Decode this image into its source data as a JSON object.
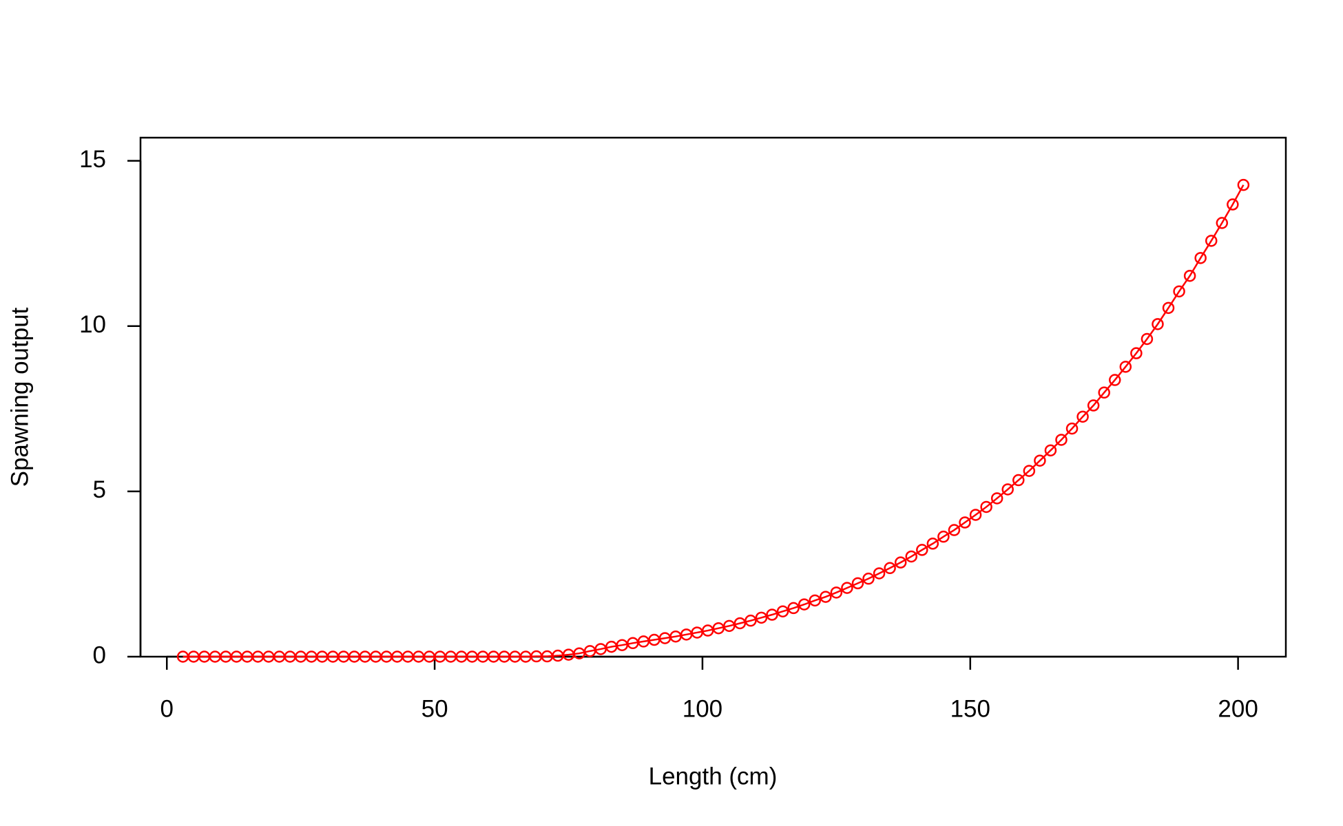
{
  "chart_data": {
    "type": "line",
    "xlabel": "Length (cm)",
    "ylabel": "Spawning output",
    "x": [
      3,
      5,
      7,
      9,
      11,
      13,
      15,
      17,
      19,
      21,
      23,
      25,
      27,
      29,
      31,
      33,
      35,
      37,
      39,
      41,
      43,
      45,
      47,
      49,
      51,
      53,
      55,
      57,
      59,
      61,
      63,
      65,
      67,
      69,
      71,
      73,
      75,
      77,
      79,
      81,
      83,
      85,
      87,
      89,
      91,
      93,
      95,
      97,
      99,
      101,
      103,
      105,
      107,
      109,
      111,
      113,
      115,
      117,
      119,
      121,
      123,
      125,
      127,
      129,
      131,
      133,
      135,
      137,
      139,
      141,
      143,
      145,
      147,
      149,
      151,
      153,
      155,
      157,
      159,
      161,
      163,
      165,
      167,
      169,
      171,
      173,
      175,
      177,
      179,
      181,
      183,
      185,
      187,
      189,
      191,
      193,
      195,
      197,
      199,
      201
    ],
    "values": [
      0,
      0,
      0,
      0,
      0,
      0,
      0,
      0,
      0,
      0,
      0,
      0,
      0,
      0,
      0,
      0,
      0,
      0,
      0,
      0,
      0,
      0,
      0,
      0,
      0,
      0,
      0,
      0,
      0,
      0,
      0,
      0,
      0,
      0.01,
      0.01,
      0.03,
      0.06,
      0.1,
      0.17,
      0.23,
      0.3,
      0.35,
      0.41,
      0.46,
      0.51,
      0.56,
      0.61,
      0.67,
      0.73,
      0.79,
      0.86,
      0.93,
      1.01,
      1.09,
      1.18,
      1.27,
      1.37,
      1.47,
      1.58,
      1.7,
      1.81,
      1.94,
      2.08,
      2.22,
      2.36,
      2.52,
      2.68,
      2.85,
      3.03,
      3.23,
      3.42,
      3.63,
      3.83,
      4.06,
      4.29,
      4.53,
      4.79,
      5.06,
      5.34,
      5.62,
      5.93,
      6.24,
      6.56,
      6.9,
      7.26,
      7.6,
      7.99,
      8.37,
      8.77,
      9.18,
      9.61,
      10.06,
      10.55,
      11.05,
      11.52,
      12.06,
      12.58,
      13.12,
      13.68,
      14.27
    ],
    "color": "#ff0000",
    "xlim": [
      -4.92,
      208.92
    ],
    "xticks": [
      0,
      50,
      100,
      150,
      200
    ],
    "ylim": [
      0,
      15.7
    ],
    "yticks": [
      0,
      5,
      10,
      15
    ]
  }
}
